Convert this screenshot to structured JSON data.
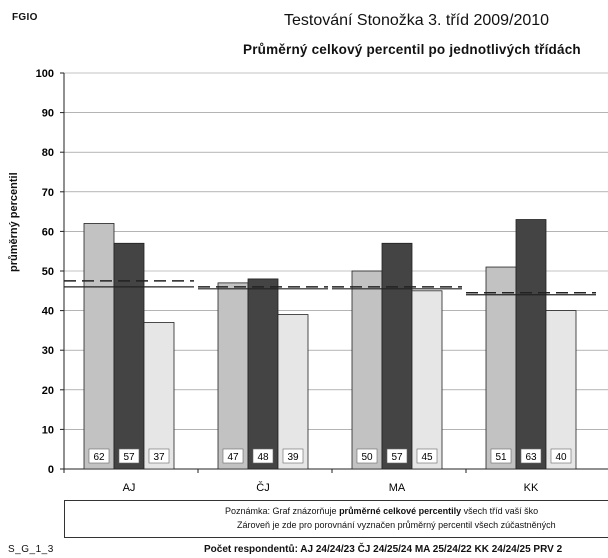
{
  "header": {
    "corner_label": "FGIO",
    "title": "Testování Stonožka 3. tříd 2009/2010",
    "subtitle": "Průměrný celkový percentil po jednotlivých třídách"
  },
  "note": {
    "line1_prefix": "Poznámka: Graf znázorňuje ",
    "line1_bold": "průměrné celkové percentily",
    "line1_suffix": " všech tříd vaší ško",
    "line2": "Zároveň je zde pro porovnání vyznačen průměrný percentil všech zúčastněných"
  },
  "footer": {
    "code": "S_G_1_3",
    "respondents": "Počet respondentů: AJ 24/24/23  ČJ 24/25/24  MA 25/24/22  KK 24/24/25  PRV 2"
  },
  "chart_data": {
    "type": "bar",
    "ylabel": "průměrný percentil",
    "ylim": [
      0,
      100
    ],
    "yticks": [
      0,
      10,
      20,
      30,
      40,
      50,
      60,
      70,
      80,
      90,
      100
    ],
    "grid": true,
    "categories": [
      "AJ",
      "ČJ",
      "MA",
      "KK"
    ],
    "series": [
      {
        "values": [
          62,
          47,
          50,
          51
        ],
        "color": "#c2c2c2"
      },
      {
        "values": [
          57,
          48,
          57,
          63
        ],
        "color": "#444444"
      },
      {
        "values": [
          37,
          39,
          45,
          40
        ],
        "color": "#e6e6e6"
      }
    ],
    "value_labels": [
      [
        62,
        57,
        37
      ],
      [
        47,
        48,
        39
      ],
      [
        50,
        57,
        45
      ],
      [
        51,
        63,
        40
      ]
    ],
    "reference_lines": [
      {
        "style": "dashed",
        "values": [
          47.5,
          46,
          46,
          44.5
        ]
      },
      {
        "style": "solid",
        "values": [
          46,
          45.5,
          45.5,
          44
        ]
      }
    ]
  }
}
